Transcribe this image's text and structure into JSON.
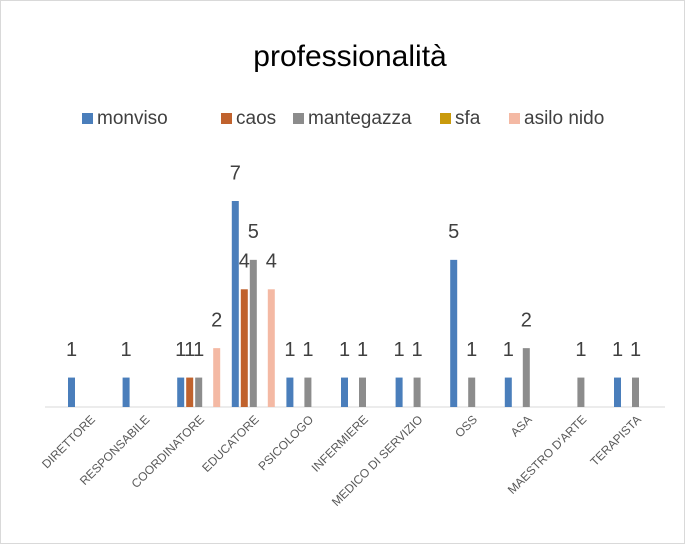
{
  "chart_data": {
    "type": "bar",
    "title": "professionalità",
    "categories": [
      "DIRETTORE",
      "RESPONSABILE",
      "COORDINATORE",
      "EDUCATORE",
      "PSICOLOGO",
      "INFERMIERE",
      "MEDICO DI SERVIZIO",
      "OSS",
      "ASA",
      "MAESTRO D'ARTE",
      "TERAPISTA"
    ],
    "series": [
      {
        "name": "monviso",
        "color": "#4a7ebb",
        "values": [
          1,
          1,
          1,
          7,
          1,
          1,
          1,
          5,
          1,
          null,
          1
        ]
      },
      {
        "name": "caos",
        "color": "#c0622d",
        "values": [
          null,
          null,
          1,
          4,
          null,
          null,
          null,
          null,
          null,
          null,
          null
        ]
      },
      {
        "name": "mantegazza",
        "color": "#8c8c8c",
        "values": [
          null,
          null,
          1,
          5,
          1,
          1,
          1,
          1,
          2,
          1,
          1
        ]
      },
      {
        "name": "sfa",
        "color": "#c99a0c",
        "values": [
          null,
          null,
          null,
          null,
          null,
          null,
          null,
          null,
          null,
          null,
          null
        ]
      },
      {
        "name": "asilo nido",
        "color": "#f4b9a4",
        "values": [
          null,
          null,
          2,
          4,
          null,
          null,
          null,
          null,
          null,
          null,
          null
        ]
      }
    ],
    "legend": "top"
  }
}
